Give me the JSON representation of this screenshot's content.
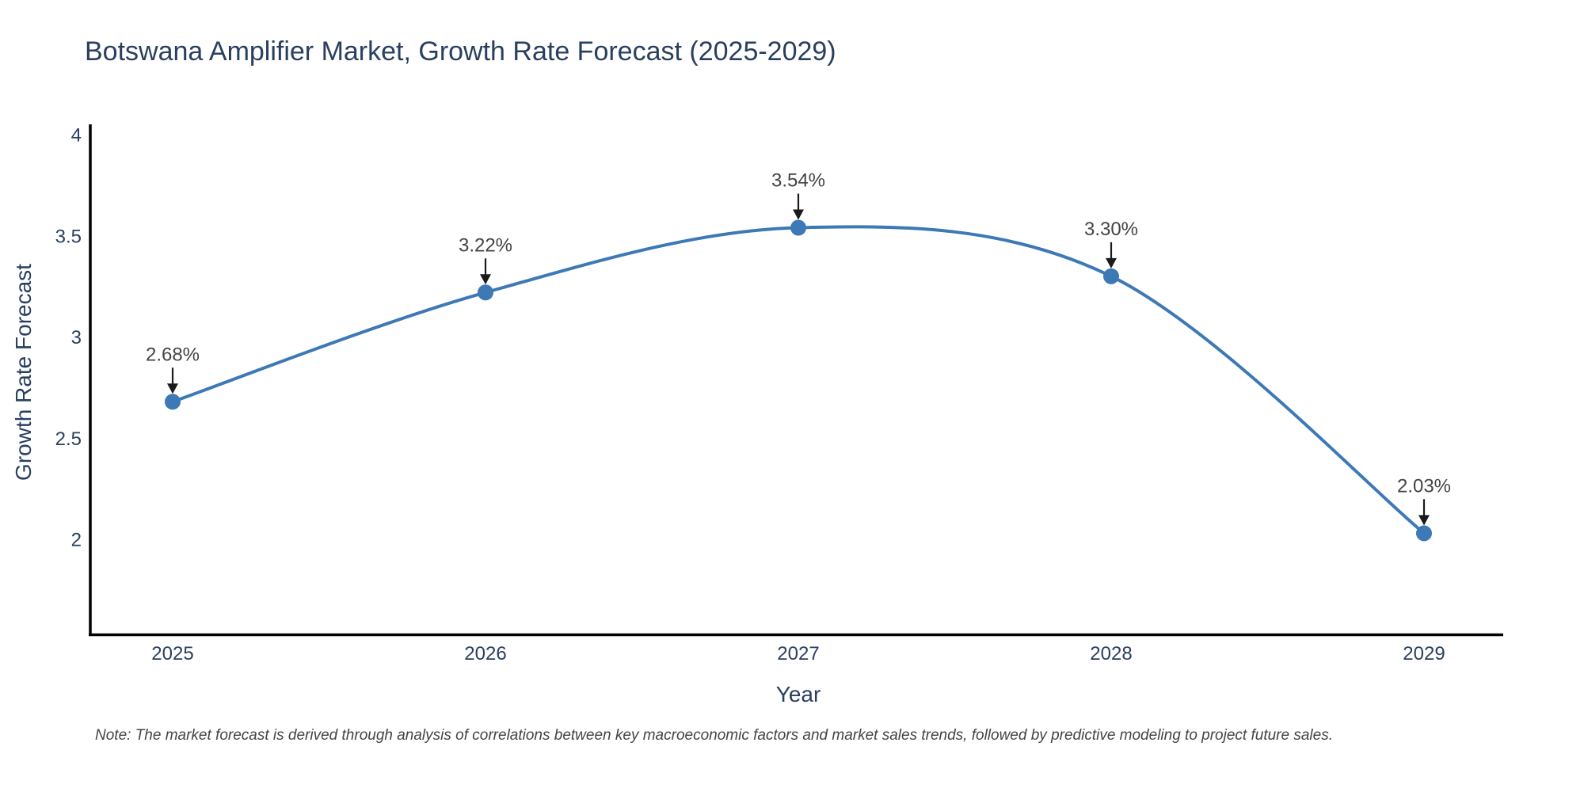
{
  "note": "Note: The market forecast is derived through analysis of correlations between key macroeconomic factors and market sales trends, followed by predictive modeling to project future sales.",
  "chart_data": {
    "type": "line",
    "line_shape": "spline",
    "title": "Botswana Amplifier Market, Growth Rate Forecast (2025-2029)",
    "xlabel": "Year",
    "ylabel": "Growth Rate Forecast",
    "series_name": "Growth Rate Forecast",
    "x": [
      2025,
      2026,
      2027,
      2028,
      2029
    ],
    "values": [
      2.68,
      3.22,
      3.54,
      3.3,
      2.03
    ],
    "point_labels": [
      "2.68%",
      "3.22%",
      "3.54%",
      "3.30%",
      "2.03%"
    ],
    "xticks": [
      "2025",
      "2026",
      "2027",
      "2028",
      "2029"
    ],
    "yticks": [
      2,
      2.5,
      3,
      3.5,
      4
    ],
    "ytick_labels": [
      "2",
      "2.5",
      "3",
      "3.5",
      "4"
    ],
    "ylim": [
      1.52,
      4.05
    ],
    "xlim": [
      2024.73,
      2029.25
    ],
    "grid": false,
    "legend": "none",
    "annotation_style": "arrow-down",
    "colors": {
      "line": "#3c79b5",
      "marker": "#3c79b5",
      "axis_line": "#000000",
      "tick_text": "#2a3f5f",
      "title_text": "#2a3f5f",
      "annotation_text": "#444444",
      "arrow": "#1a1a1a",
      "background": "#ffffff"
    }
  }
}
